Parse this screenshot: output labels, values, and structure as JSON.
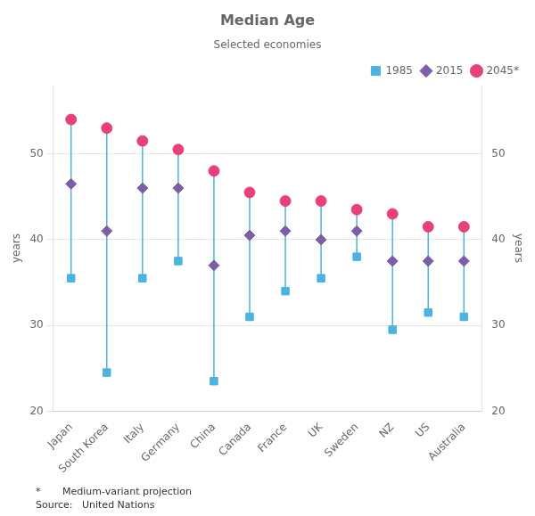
{
  "chart_data": {
    "type": "dot",
    "title": "Median Age",
    "subtitle": "Selected economies",
    "ylabel": "years",
    "y2label": "years",
    "annotations": [
      "*       Medium-variant projection",
      "Source:   United Nations"
    ],
    "categories": [
      "Japan",
      "South Korea",
      "Italy",
      "Germany",
      "China",
      "Canada",
      "France",
      "UK",
      "Sweden",
      "NZ",
      "US",
      "Australia"
    ],
    "series": [
      {
        "name": "1985",
        "color": "#4ab3e0",
        "marker": "square",
        "values": [
          35.5,
          24.5,
          35.5,
          37.5,
          23.5,
          31.0,
          34.0,
          35.5,
          38.0,
          29.5,
          31.5,
          31.0
        ]
      },
      {
        "name": "2015",
        "color": "#7b5ea7",
        "marker": "diamond",
        "values": [
          46.5,
          41.0,
          46.0,
          46.0,
          37.0,
          40.5,
          41.0,
          40.0,
          41.0,
          37.5,
          37.5,
          37.5
        ]
      },
      {
        "name": "2045*",
        "color": "#e8417a",
        "marker": "circle",
        "values": [
          54.0,
          53.0,
          51.5,
          50.5,
          48.0,
          45.5,
          44.5,
          44.5,
          43.5,
          43.0,
          41.5,
          41.5
        ]
      }
    ],
    "ylim": [
      20,
      58
    ],
    "yticks": [
      20,
      30,
      40,
      50
    ],
    "y2lim": [
      20,
      58
    ],
    "y2ticks": [
      20,
      30,
      40,
      50
    ],
    "grid": true,
    "legend": "upper right"
  }
}
